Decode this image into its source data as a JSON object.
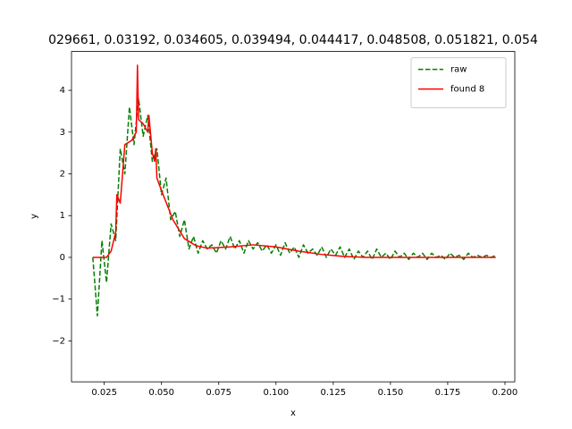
{
  "chart_data": {
    "type": "line",
    "title": "029661, 0.03192, 0.034605, 0.039494, 0.044417, 0.048508, 0.051821, 0.054",
    "x_label": "x",
    "y_label": "y",
    "xlim": [
      0.0107,
      0.2043
    ],
    "ylim": [
      -2.98,
      4.93
    ],
    "xticks": [
      0.025,
      {
        "value": 0.05,
        "label": "0.050"
      },
      0.075,
      {
        "value": 0.1,
        "label": "0.100"
      },
      0.125,
      {
        "value": 0.15,
        "label": "0.150"
      },
      0.175,
      {
        "value": 0.2,
        "label": "0.200"
      }
    ],
    "yticks": [
      {
        "value": -2,
        "label": "−2"
      },
      {
        "value": -1,
        "label": "−1"
      },
      0,
      1,
      2,
      3,
      4
    ],
    "legend_position": "upper right",
    "series": [
      {
        "name": "raw",
        "color": "#008000",
        "linestyle": "dashed",
        "x": [
          0.02,
          0.022,
          0.024,
          0.026,
          0.028,
          0.03,
          0.032,
          0.034,
          0.036,
          0.038,
          0.04,
          0.042,
          0.044,
          0.046,
          0.048,
          0.05,
          0.052,
          0.054,
          0.056,
          0.058,
          0.06,
          0.062,
          0.064,
          0.066,
          0.068,
          0.07,
          0.072,
          0.074,
          0.076,
          0.078,
          0.08,
          0.082,
          0.084,
          0.086,
          0.088,
          0.09,
          0.092,
          0.094,
          0.096,
          0.098,
          0.1,
          0.102,
          0.104,
          0.106,
          0.108,
          0.11,
          0.112,
          0.114,
          0.116,
          0.118,
          0.12,
          0.122,
          0.124,
          0.126,
          0.128,
          0.13,
          0.132,
          0.134,
          0.136,
          0.138,
          0.14,
          0.142,
          0.144,
          0.146,
          0.148,
          0.15,
          0.152,
          0.154,
          0.156,
          0.158,
          0.16,
          0.162,
          0.164,
          0.166,
          0.168,
          0.17,
          0.172,
          0.174,
          0.176,
          0.178,
          0.18,
          0.182,
          0.184,
          0.186,
          0.188,
          0.19,
          0.192,
          0.194,
          0.196
        ],
        "values": [
          0.0,
          -1.4,
          0.4,
          -0.6,
          0.8,
          0.4,
          2.6,
          2.0,
          3.6,
          2.7,
          3.8,
          2.9,
          3.4,
          2.3,
          2.6,
          1.5,
          1.9,
          0.9,
          1.1,
          0.5,
          0.9,
          0.2,
          0.5,
          0.1,
          0.4,
          0.2,
          0.3,
          0.1,
          0.4,
          0.2,
          0.5,
          0.2,
          0.4,
          0.1,
          0.4,
          0.2,
          0.35,
          0.15,
          0.3,
          0.1,
          0.3,
          0.05,
          0.35,
          0.1,
          0.25,
          0.0,
          0.3,
          0.1,
          0.2,
          0.05,
          0.25,
          0.0,
          0.2,
          0.05,
          0.25,
          0.0,
          0.2,
          -0.05,
          0.15,
          0.0,
          0.15,
          -0.05,
          0.2,
          0.0,
          0.1,
          -0.05,
          0.15,
          0.0,
          0.1,
          -0.05,
          0.1,
          0.0,
          0.1,
          -0.05,
          0.1,
          0.0,
          0.05,
          -0.05,
          0.1,
          0.0,
          0.05,
          -0.05,
          0.1,
          0.0,
          0.05,
          0.0,
          0.05,
          0.0,
          0.05
        ]
      },
      {
        "name": "found 8",
        "color": "#ff0000",
        "linestyle": "solid",
        "x": [
          0.02,
          0.026,
          0.028,
          0.03,
          0.0305,
          0.032,
          0.034,
          0.037,
          0.039,
          0.0395,
          0.04,
          0.042,
          0.044,
          0.0445,
          0.046,
          0.047,
          0.0475,
          0.048,
          0.05,
          0.055,
          0.06,
          0.065,
          0.07,
          0.08,
          0.09,
          0.1,
          0.11,
          0.12,
          0.13,
          0.14,
          0.196
        ],
        "values": [
          0.0,
          0.0,
          0.15,
          0.6,
          1.5,
          1.3,
          2.7,
          2.8,
          3.0,
          4.6,
          3.3,
          3.2,
          3.0,
          3.4,
          2.5,
          2.3,
          2.6,
          1.9,
          1.6,
          0.9,
          0.45,
          0.28,
          0.22,
          0.25,
          0.3,
          0.25,
          0.15,
          0.07,
          0.02,
          0.0,
          0.0
        ]
      }
    ]
  }
}
